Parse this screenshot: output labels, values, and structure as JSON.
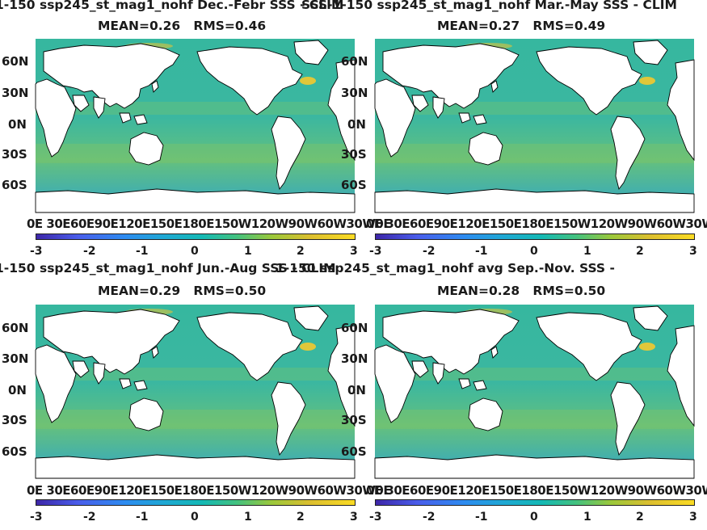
{
  "panels": [
    {
      "title": "1-150 ssp245_st_mag1_nohf Dec.-Febr SSS - CLIM",
      "stats": "MEAN=0.26   RMS=0.46"
    },
    {
      "title": "SSS-1-150 ssp245_st_mag1_nohf Mar.-May SSS - CLIM",
      "stats": "MEAN=0.27   RMS=0.49"
    },
    {
      "title": "1-150 ssp245_st_mag1_nohf Jun.-Aug SSS - CLIM",
      "stats": "MEAN=0.29   RMS=0.50"
    },
    {
      "title": "1-150 ssp245_st_mag1_nohf avg Sep.-Nov. SSS -",
      "stats": "MEAN=0.28   RMS=0.50"
    }
  ],
  "lat_labels": [
    "60N",
    "30N",
    "0N",
    "30S",
    "60S"
  ],
  "lon_labels": "0E 30E60E90E120E150E180E150W120W90W60W30W0E",
  "colorbar": {
    "ticks": [
      "-3",
      "-2",
      "-1",
      "0",
      "1",
      "2",
      "3"
    ],
    "range": [
      -3,
      3
    ],
    "colormap": "parula"
  },
  "colors": {
    "ocean": "#2fb3a6",
    "land": "#ffffff",
    "coast": "#000000",
    "positive": "#fadb23",
    "negative": "#3d26a8"
  }
}
